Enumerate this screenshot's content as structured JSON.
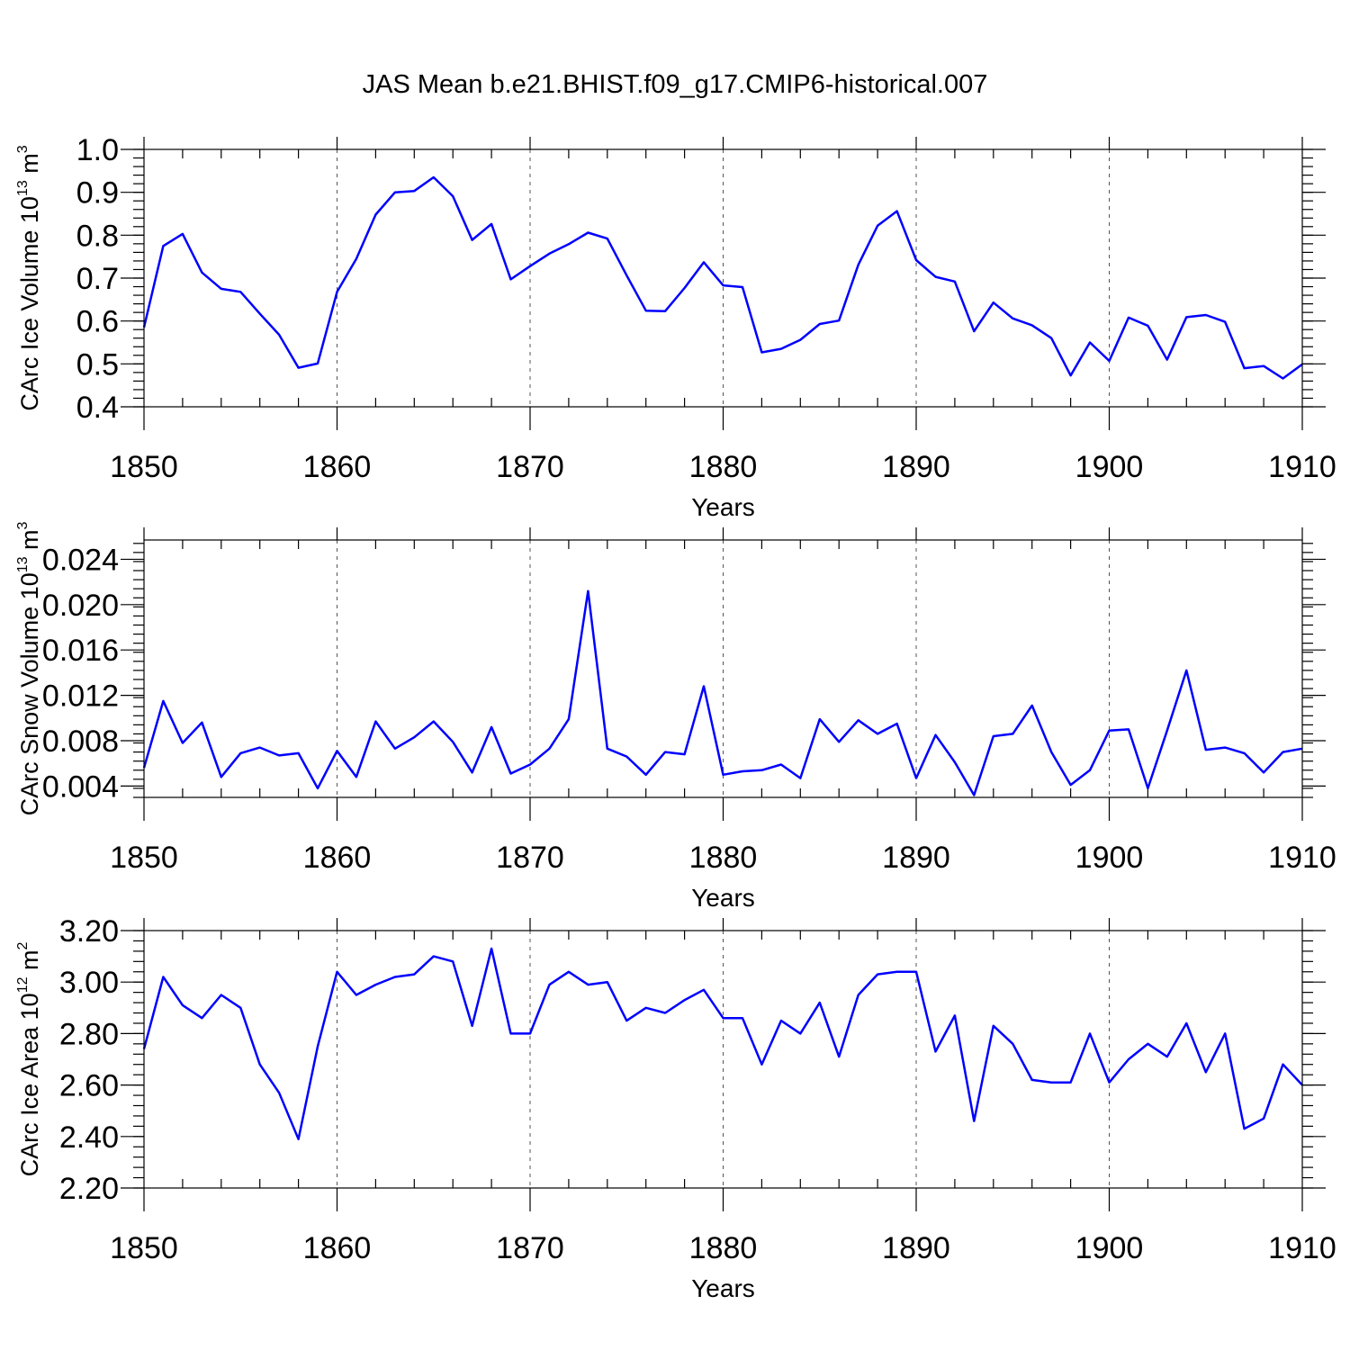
{
  "title": "JAS Mean b.e21.BHIST.f09_g17.CMIP6-historical.007",
  "chart_data": [
    {
      "type": "line",
      "id": "volume",
      "ylabel": "CArc Ice Volume 10",
      "ylabel_exp": "13",
      "ylabel_unit": " m",
      "ylabel_unit_exp": "3",
      "xlabel": "Years",
      "xlim": [
        1850,
        1910
      ],
      "ylim": [
        0.4,
        1.0
      ],
      "xticks": [
        "1850",
        "1860",
        "1870",
        "1880",
        "1890",
        "1900",
        "1910"
      ],
      "yticks": [
        "0.4",
        "0.5",
        "0.6",
        "0.7",
        "0.8",
        "0.9",
        "1.0"
      ],
      "grid": "vertical dashed at decades",
      "x_start": 1850,
      "values": [
        0.585,
        0.775,
        0.803,
        0.713,
        0.675,
        0.668,
        0.617,
        0.568,
        0.491,
        0.501,
        0.668,
        0.745,
        0.848,
        0.9,
        0.903,
        0.935,
        0.891,
        0.789,
        0.826,
        0.697,
        0.728,
        0.757,
        0.779,
        0.806,
        0.792,
        0.706,
        0.624,
        0.623,
        0.677,
        0.737,
        0.683,
        0.679,
        0.527,
        0.535,
        0.556,
        0.593,
        0.601,
        0.731,
        0.822,
        0.856,
        0.742,
        0.703,
        0.692,
        0.576,
        0.643,
        0.606,
        0.59,
        0.56,
        0.473,
        0.55,
        0.507,
        0.608,
        0.589,
        0.51,
        0.609,
        0.614,
        0.598,
        0.49,
        0.495,
        0.466,
        0.499
      ]
    },
    {
      "type": "line",
      "id": "snow",
      "ylabel": "CArc Snow Volume 10",
      "ylabel_exp": "13",
      "ylabel_unit": " m",
      "ylabel_unit_exp": "3",
      "xlabel": "Years",
      "xlim": [
        1850,
        1910
      ],
      "ylim": [
        0.003,
        0.0257
      ],
      "xticks": [
        "1850",
        "1860",
        "1870",
        "1880",
        "1890",
        "1900",
        "1910"
      ],
      "yticks": [
        "0.004",
        "0.008",
        "0.012",
        "0.016",
        "0.020",
        "0.024"
      ],
      "grid": "vertical dashed at decades",
      "x_start": 1850,
      "values": [
        0.0056,
        0.0115,
        0.0078,
        0.0096,
        0.0048,
        0.0069,
        0.0074,
        0.0067,
        0.0069,
        0.0038,
        0.0071,
        0.0048,
        0.0097,
        0.0073,
        0.0083,
        0.0097,
        0.0079,
        0.0052,
        0.0092,
        0.0051,
        0.0059,
        0.0073,
        0.0099,
        0.0212,
        0.0073,
        0.0066,
        0.005,
        0.007,
        0.0068,
        0.0128,
        0.005,
        0.0053,
        0.0054,
        0.0059,
        0.0047,
        0.0099,
        0.0079,
        0.0098,
        0.0086,
        0.0095,
        0.0047,
        0.0085,
        0.0061,
        0.0032,
        0.0084,
        0.0086,
        0.0111,
        0.007,
        0.0041,
        0.0054,
        0.0089,
        0.009,
        0.0038,
        0.0089,
        0.0142,
        0.0072,
        0.0074,
        0.0069,
        0.0052,
        0.007,
        0.0073
      ]
    },
    {
      "type": "line",
      "id": "area",
      "ylabel": "CArc Ice Area 10",
      "ylabel_exp": "12",
      "ylabel_unit": " m",
      "ylabel_unit_exp": "2",
      "xlabel": "Years",
      "xlim": [
        1850,
        1910
      ],
      "ylim": [
        2.2,
        3.2
      ],
      "xticks": [
        "1850",
        "1860",
        "1870",
        "1880",
        "1890",
        "1900",
        "1910"
      ],
      "yticks": [
        "2.20",
        "2.40",
        "2.60",
        "2.80",
        "3.00",
        "3.20"
      ],
      "grid": "vertical dashed at decades",
      "x_start": 1850,
      "values": [
        2.74,
        3.02,
        2.91,
        2.86,
        2.95,
        2.9,
        2.68,
        2.57,
        2.39,
        2.75,
        3.04,
        2.95,
        2.99,
        3.02,
        3.03,
        3.1,
        3.08,
        2.83,
        3.13,
        2.8,
        2.8,
        2.99,
        3.04,
        2.99,
        3.0,
        2.85,
        2.9,
        2.88,
        2.93,
        2.97,
        2.86,
        2.86,
        2.68,
        2.85,
        2.8,
        2.92,
        2.71,
        2.95,
        3.03,
        3.04,
        3.04,
        2.73,
        2.87,
        2.46,
        2.83,
        2.76,
        2.62,
        2.61,
        2.61,
        2.8,
        2.61,
        2.7,
        2.76,
        2.71,
        2.84,
        2.65,
        2.8,
        2.43,
        2.47,
        2.68,
        2.6
      ]
    }
  ]
}
